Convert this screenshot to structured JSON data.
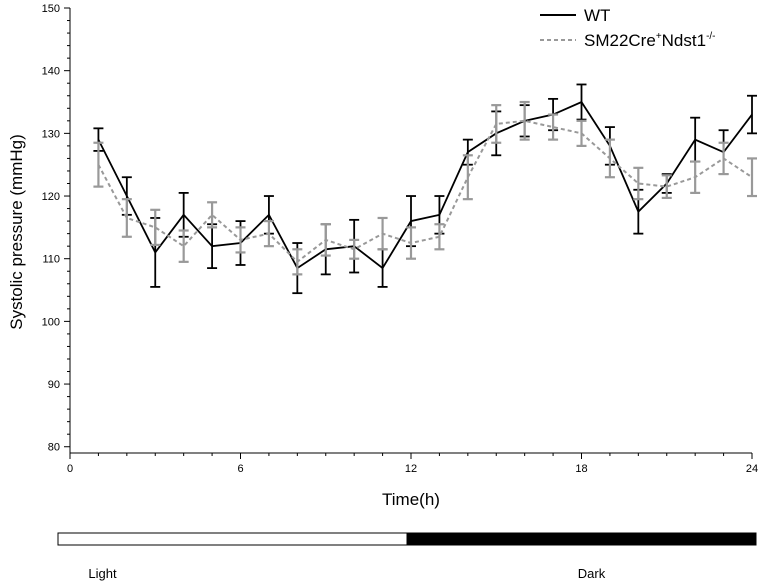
{
  "chart_data": {
    "type": "line",
    "xlabel": "Time(h)",
    "ylabel": "Systolic pressure (mmHg)",
    "xlim": [
      0,
      24
    ],
    "ylim": [
      79,
      150
    ],
    "x_ticks": [
      0,
      6,
      12,
      18,
      24
    ],
    "y_ticks": [
      80,
      90,
      100,
      110,
      120,
      130,
      140,
      150
    ],
    "grid": false,
    "legend_position": "top-right",
    "x": [
      1,
      2,
      3,
      4,
      5,
      6,
      7,
      8,
      9,
      10,
      11,
      12,
      13,
      14,
      15,
      16,
      17,
      18,
      19,
      20,
      21,
      22,
      23,
      24
    ],
    "series": [
      {
        "name": "WT",
        "legend_base": "WT",
        "color": "#000000",
        "dash": "solid",
        "values": [
          129,
          120,
          111,
          117,
          112,
          112.5,
          117,
          108.5,
          111.5,
          112,
          108.5,
          116,
          117,
          127,
          130,
          132,
          133,
          135,
          128,
          117.5,
          122,
          129,
          127,
          133
        ],
        "errors": [
          1.8,
          3,
          5.5,
          3.5,
          3.5,
          3.5,
          3,
          4,
          4,
          4.2,
          3,
          4,
          3,
          2,
          3.5,
          2.5,
          2.5,
          2.8,
          3,
          3.5,
          1.5,
          3.5,
          3.5,
          3
        ]
      },
      {
        "name": "SM22Cre+Ndst1-/-",
        "legend_base": "SM22Cre",
        "legend_sup1": "+",
        "legend_mid": "Ndst1",
        "legend_sup2": "-/-",
        "color": "#999999",
        "dash": "dashed",
        "values": [
          125,
          116.5,
          115,
          112,
          117,
          113,
          114,
          109.5,
          113,
          111.5,
          114,
          112.5,
          113.5,
          123,
          131.5,
          132,
          131,
          130,
          126,
          122,
          121.5,
          123,
          126,
          123
        ],
        "errors": [
          3.5,
          3,
          2.8,
          2.5,
          2,
          2,
          2,
          2,
          2.5,
          1.5,
          2.5,
          2.5,
          2,
          3.5,
          3,
          3,
          2,
          2,
          3,
          2.5,
          1.8,
          2.5,
          2.5,
          3
        ]
      }
    ],
    "periods": [
      {
        "label": "Light",
        "start": 0,
        "end": 12,
        "fill": "#ffffff"
      },
      {
        "label": "Dark",
        "start": 12,
        "end": 24,
        "fill": "#000000"
      }
    ]
  }
}
